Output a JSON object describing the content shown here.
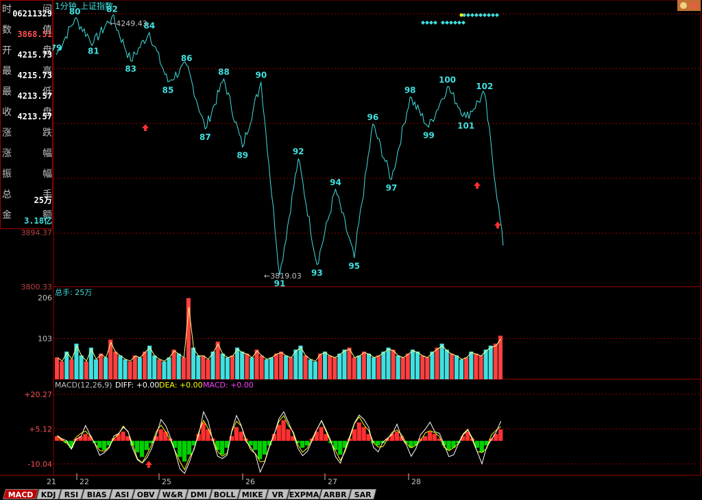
{
  "header": {
    "period": "1分钟",
    "index_name": "上证指数"
  },
  "info_panel": {
    "rows": [
      {
        "label_left": "时",
        "label_right": "间",
        "value": "06211329",
        "color": "#ffffff"
      },
      {
        "label_left": "数",
        "label_right": "值",
        "value": "3868.51",
        "color": "#ff5050"
      },
      {
        "label_left": "开",
        "label_right": "盘",
        "value": "4215.73",
        "color": "#ffffff"
      },
      {
        "label_left": "最",
        "label_right": "高",
        "value": "4215.73",
        "color": "#ffffff"
      },
      {
        "label_left": "最",
        "label_right": "低",
        "value": "4213.57",
        "color": "#ffffff"
      },
      {
        "label_left": "收",
        "label_right": "盘",
        "value": "4213.57",
        "color": "#ffffff"
      },
      {
        "label_left": "涨",
        "label_right": "跌",
        "value": "",
        "color": "#ffffff"
      },
      {
        "label_left": "涨",
        "label_right": "幅",
        "value": "",
        "color": "#ffffff"
      },
      {
        "label_left": "振",
        "label_right": "幅",
        "value": "",
        "color": "#ffffff"
      },
      {
        "label_left": "总",
        "label_right": "手",
        "value": "25万",
        "color": "#ffffff"
      },
      {
        "label_left": "金",
        "label_right": "额",
        "value": "3.18亿",
        "color": "#40e0e0"
      }
    ]
  },
  "colors": {
    "grid": "#a00000",
    "price_line": "#40e0e0",
    "up": "#ff4040",
    "down": "#40e0e0",
    "label": "#40e0e0",
    "macd_pos": "#ff3030",
    "macd_neg": "#00d000",
    "diff_line": "#ffffff",
    "dea_line": "#ffff00",
    "axis_text": "#c0c0c0"
  },
  "tabs": [
    "MACD",
    "KDJ",
    "RSI",
    "BIAS",
    "ASI",
    "OBV",
    "W&R",
    "DMI",
    "BOLL",
    "MIKE",
    "VR",
    "EXPMA",
    "ARBR",
    "SAR"
  ],
  "active_tab": "MACD",
  "chart_data": [
    {
      "type": "line",
      "title": "",
      "y_ticks": [
        "3894.37",
        "3800.33"
      ],
      "ylim": [
        3800.33,
        4260
      ],
      "high_annotation": "4249.43",
      "low_annotation": "3819.03",
      "last_value": "3868.51",
      "points": [
        {
          "label": "79",
          "y": 4185
        },
        {
          "label": "80",
          "y": 4245
        },
        {
          "label": "81",
          "y": 4205
        },
        {
          "label": "82",
          "y": 4249
        },
        {
          "label": "83",
          "y": 4175
        },
        {
          "label": "84",
          "y": 4222
        },
        {
          "label": "85",
          "y": 4140
        },
        {
          "label": "86",
          "y": 4168
        },
        {
          "label": "87",
          "y": 4062
        },
        {
          "label": "88",
          "y": 4145
        },
        {
          "label": "89",
          "y": 4032
        },
        {
          "label": "90",
          "y": 4140
        },
        {
          "label": "91",
          "y": 3819
        },
        {
          "label": "92",
          "y": 4013
        },
        {
          "label": "93",
          "y": 3837
        },
        {
          "label": "94",
          "y": 3962
        },
        {
          "label": "95",
          "y": 3848
        },
        {
          "label": "96",
          "y": 4070
        },
        {
          "label": "97",
          "y": 3978
        },
        {
          "label": "98",
          "y": 4115
        },
        {
          "label": "99",
          "y": 4065
        },
        {
          "label": "100",
          "y": 4132
        },
        {
          "label": "101",
          "y": 4081
        },
        {
          "label": "102",
          "y": 4121
        },
        {
          "label": "",
          "y": 3868.51
        }
      ],
      "buy_arrows_count": 3
    },
    {
      "type": "bar",
      "title": "总手: 25万",
      "y_ticks": [
        "206",
        "103"
      ],
      "ylim": [
        0,
        206
      ],
      "values": [
        55,
        45,
        70,
        50,
        90,
        60,
        45,
        80,
        50,
        65,
        55,
        100,
        70,
        60,
        50,
        45,
        60,
        55,
        70,
        85,
        60,
        50,
        45,
        55,
        75,
        65,
        55,
        205,
        80,
        60,
        60,
        50,
        70,
        95,
        65,
        55,
        60,
        80,
        70,
        65,
        55,
        75,
        60,
        50,
        55,
        65,
        70,
        60,
        55,
        75,
        85,
        60,
        50,
        45,
        65,
        70,
        60,
        55,
        65,
        75,
        80,
        55,
        60,
        70,
        65,
        55,
        60,
        70,
        80,
        75,
        60,
        55,
        65,
        75,
        70,
        60,
        55,
        70,
        80,
        90,
        75,
        65,
        60,
        50,
        55,
        70,
        65,
        60,
        75,
        85,
        90,
        110
      ]
    },
    {
      "type": "bar",
      "title": "MACD(12,26,9) DIFF: +0.00 DEA: +0.00 MACD: +0.00",
      "legend": [
        "DIFF: +0.00",
        "DEA: +0.00",
        "MACD: +0.00"
      ],
      "y_ticks": [
        "+20.27",
        "+5.12",
        "-10.04"
      ],
      "ylim": [
        -15,
        22
      ],
      "values": [
        2,
        1,
        -1,
        -3,
        1,
        2,
        3,
        2,
        -1,
        -3,
        -4,
        -2,
        1,
        3,
        4,
        2,
        -2,
        -5,
        -7,
        -4,
        -1,
        2,
        5,
        4,
        1,
        -3,
        -7,
        -9,
        -6,
        -2,
        3,
        8,
        5,
        1,
        -4,
        -6,
        -3,
        2,
        6,
        4,
        1,
        -2,
        -4,
        -8,
        -6,
        -2,
        3,
        7,
        9,
        5,
        2,
        -1,
        -3,
        -2,
        1,
        4,
        6,
        3,
        -1,
        -4,
        -6,
        -3,
        1,
        5,
        8,
        6,
        3,
        -1,
        -2,
        -1,
        1,
        3,
        4,
        2,
        -1,
        -3,
        -2,
        1,
        2,
        4,
        3,
        1,
        -2,
        -4,
        -3,
        -1,
        2,
        4,
        1,
        -3,
        -5,
        -2,
        1,
        3,
        5
      ]
    }
  ],
  "x_axis": {
    "labels": [
      "21",
      "22",
      "25",
      "26",
      "27",
      "28"
    ]
  },
  "nav_icon": "chart-tools-icon"
}
